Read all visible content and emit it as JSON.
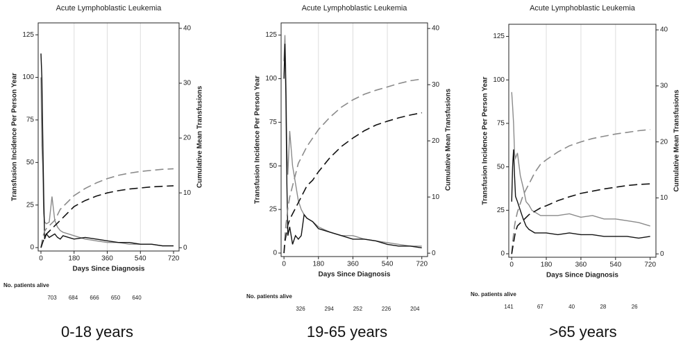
{
  "chart_data": [
    {
      "type": "line",
      "title": "Acute Lymphoblastic Leukemia",
      "x_label": "Days Since Diagnosis",
      "y_label": "Transfusion Incidence Per Person Year",
      "y2_label": "Cumulative Mean Transfusions",
      "x": [
        0,
        5,
        10,
        15,
        20,
        30,
        45,
        60,
        75,
        90,
        105,
        120,
        150,
        180,
        240,
        300,
        360,
        420,
        480,
        540,
        600,
        660,
        720
      ],
      "xlim": [
        -15,
        750
      ],
      "xticks": [
        0,
        180,
        360,
        540,
        720
      ],
      "grid": true,
      "ylim": [
        -2,
        132
      ],
      "yticks": [
        0,
        25,
        50,
        75,
        100,
        125
      ],
      "y2lim": [
        -0.6,
        41
      ],
      "y2ticks": [
        0,
        10,
        20,
        30,
        40
      ],
      "series": [
        {
          "color": "#8a8a8a",
          "dash": false,
          "values": [
            100,
            60,
            48,
            20,
            15,
            14,
            15,
            30,
            16,
            12,
            10,
            9,
            8,
            7,
            5,
            4,
            3,
            3,
            2,
            2,
            2,
            1,
            1
          ]
        },
        {
          "color": "#111111",
          "dash": false,
          "values": [
            114,
            100,
            65,
            30,
            5,
            8,
            6,
            7,
            8,
            6,
            5,
            7,
            6,
            5,
            6,
            5,
            4,
            3,
            3,
            2,
            2,
            1,
            1
          ]
        },
        {
          "color": "#8a8a8a",
          "dash": true,
          "axis": "y2",
          "values": [
            0,
            1,
            2,
            2.5,
            3,
            3.5,
            4,
            4.5,
            5,
            6,
            7,
            7.5,
            8.5,
            9.5,
            10.8,
            11.8,
            12.6,
            13.2,
            13.6,
            13.9,
            14.1,
            14.3,
            14.4
          ]
        },
        {
          "color": "#111111",
          "dash": true,
          "axis": "y2",
          "values": [
            0,
            0.5,
            1,
            1.5,
            2,
            2.5,
            3,
            3.5,
            4,
            4.5,
            5,
            5.5,
            6.5,
            7.5,
            8.6,
            9.4,
            10,
            10.4,
            10.7,
            10.9,
            11.1,
            11.2,
            11.3
          ]
        }
      ],
      "at_risk_label": "No. patients alive",
      "at_risk": [
        703,
        684,
        666,
        650,
        640
      ],
      "caption": "0-18 years"
    },
    {
      "type": "line",
      "title": "Acute Lymphoblastic Leukemia",
      "x_label": "Days Since Diagnosis",
      "y_label": "Transfusion Incidence Per Person Year",
      "y2_label": "Cumulative Mean Transfusions",
      "x": [
        0,
        5,
        10,
        15,
        20,
        30,
        45,
        60,
        75,
        90,
        105,
        120,
        150,
        180,
        240,
        300,
        360,
        420,
        480,
        540,
        600,
        660,
        720
      ],
      "xlim": [
        -15,
        750
      ],
      "xticks": [
        0,
        180,
        360,
        540,
        720
      ],
      "grid": true,
      "ylim": [
        -2,
        132
      ],
      "yticks": [
        0,
        25,
        50,
        75,
        100,
        125
      ],
      "y2lim": [
        -0.6,
        41
      ],
      "y2ticks": [
        0,
        10,
        20,
        30,
        40
      ],
      "series": [
        {
          "color": "#8a8a8a",
          "dash": false,
          "values": [
            110,
            125,
            100,
            60,
            45,
            70,
            50,
            40,
            30,
            25,
            22,
            20,
            18,
            15,
            12,
            10,
            10,
            8,
            7,
            6,
            5,
            4,
            4
          ]
        },
        {
          "color": "#111111",
          "dash": false,
          "values": [
            100,
            120,
            90,
            40,
            10,
            15,
            5,
            10,
            8,
            10,
            22,
            20,
            18,
            14,
            12,
            10,
            8,
            8,
            7,
            5,
            4,
            4,
            3
          ]
        },
        {
          "color": "#8a8a8a",
          "dash": true,
          "axis": "y2",
          "values": [
            0,
            3,
            5,
            6.5,
            8,
            10,
            12,
            14,
            16,
            17,
            18,
            19,
            20.5,
            22,
            24.2,
            26,
            27.3,
            28.3,
            29,
            29.6,
            30.2,
            30.7,
            31
          ]
        },
        {
          "color": "#111111",
          "dash": true,
          "axis": "y2",
          "values": [
            0,
            2,
            3,
            4,
            5,
            6,
            7,
            8,
            9,
            10,
            11,
            12,
            13,
            14.5,
            17,
            19,
            20.5,
            21.8,
            22.8,
            23.5,
            24.1,
            24.6,
            25
          ]
        }
      ],
      "at_risk_label": "No. patients alive",
      "at_risk": [
        326,
        294,
        252,
        226,
        204
      ],
      "caption": "19-65 years"
    },
    {
      "type": "line",
      "title": "Acute Lymphoblastic Leukemia",
      "x_label": "Days Since Diagnosis",
      "y_label": "Transfusion Incidence Per Person Year",
      "y2_label": "Cumulative Mean Transfusions",
      "x": [
        0,
        5,
        10,
        15,
        20,
        30,
        45,
        60,
        75,
        90,
        105,
        120,
        150,
        180,
        240,
        300,
        360,
        420,
        480,
        540,
        600,
        660,
        720
      ],
      "xlim": [
        -15,
        750
      ],
      "xticks": [
        0,
        180,
        360,
        540,
        720
      ],
      "grid": true,
      "ylim": [
        -2,
        132
      ],
      "yticks": [
        0,
        25,
        50,
        75,
        100,
        125
      ],
      "y2lim": [
        -0.6,
        41
      ],
      "y2ticks": [
        0,
        10,
        20,
        30,
        40
      ],
      "series": [
        {
          "color": "#8a8a8a",
          "dash": false,
          "values": [
            93,
            85,
            75,
            58,
            55,
            58,
            45,
            38,
            30,
            28,
            25,
            24,
            22,
            22,
            22,
            23,
            21,
            22,
            20,
            20,
            19,
            18,
            16
          ]
        },
        {
          "color": "#111111",
          "dash": false,
          "values": [
            30,
            50,
            60,
            45,
            33,
            30,
            25,
            20,
            16,
            14,
            13,
            12,
            12,
            12,
            11,
            12,
            11,
            11,
            10,
            10,
            10,
            9,
            10
          ]
        },
        {
          "color": "#8a8a8a",
          "dash": true,
          "axis": "y2",
          "values": [
            0,
            2,
            3.5,
            5,
            6,
            7.5,
            9,
            10.5,
            11.5,
            12.5,
            13.5,
            14.5,
            16,
            16.8,
            18.2,
            19.3,
            20,
            20.6,
            21,
            21.4,
            21.7,
            22,
            22.2
          ]
        },
        {
          "color": "#111111",
          "dash": true,
          "axis": "y2",
          "values": [
            0,
            1,
            2,
            3,
            4,
            5,
            5.5,
            6,
            6.5,
            7,
            7.3,
            7.6,
            8.2,
            8.6,
            9.5,
            10.2,
            10.8,
            11.2,
            11.6,
            11.9,
            12.2,
            12.4,
            12.5
          ]
        }
      ],
      "at_risk_label": "No. patients alive",
      "at_risk": [
        141,
        67,
        40,
        28,
        26
      ],
      "caption": ">65 years"
    }
  ]
}
